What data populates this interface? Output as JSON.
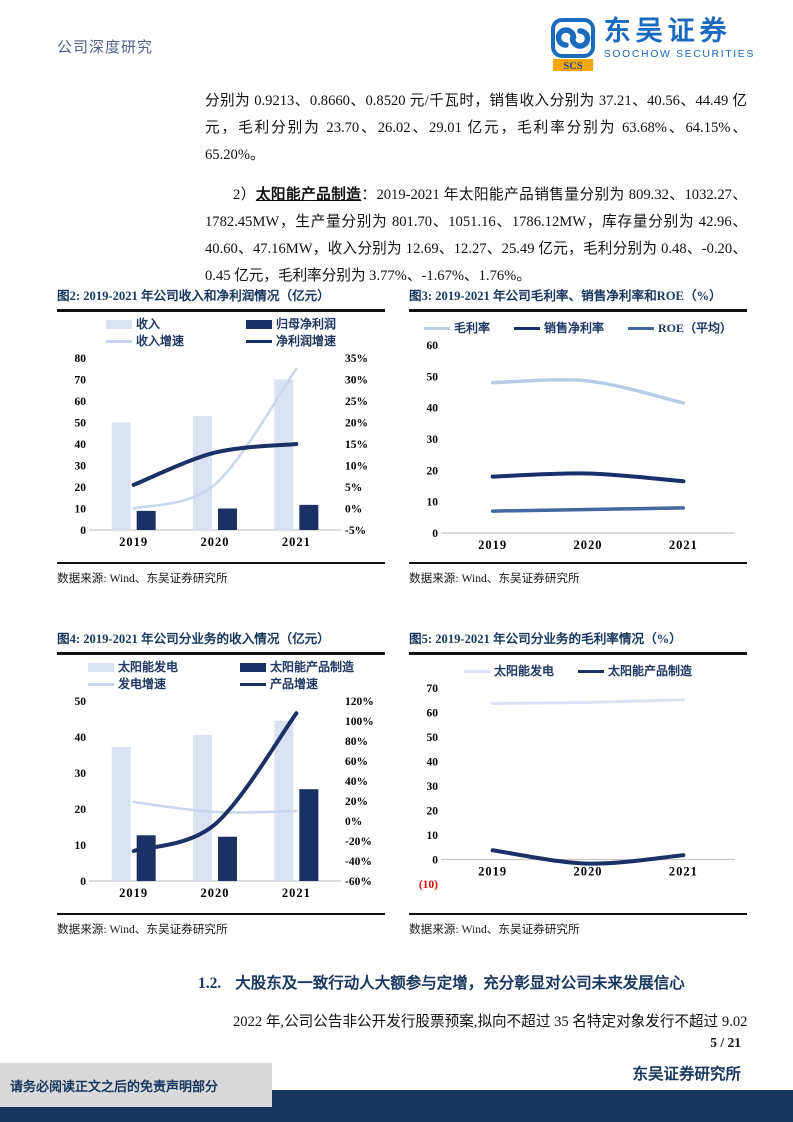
{
  "header": {
    "category": "公司深度研究",
    "logo_abbr": "SCS",
    "logo_cn": "东吴证券",
    "logo_en": "SOOCHOW SECURITIES"
  },
  "paragraphs": {
    "p1": "分别为 0.9213、0.8660、0.8520 元/千瓦时，销售收入分别为 37.21、40.56、44.49 亿元，毛利分别为 23.70、26.02、29.01 亿元，毛利率分别为 63.68%、64.15%、65.20%。",
    "p2_prefix": "2）",
    "p2_bold": "太阳能产品制造",
    "p2_rest": "：2019-2021 年太阳能产品销售量分别为 809.32、1032.27、1782.45MW，生产量分别为 801.70、1051.16、1786.12MW，库存量分别为 42.96、40.60、47.16MW，收入分别为 12.69、12.27、25.49 亿元，毛利分别为 0.48、-0.20、0.45 亿元，毛利率分别为 3.77%、-1.67%、1.76%。",
    "section_number": "1.2.",
    "section_heading": "大股东及一致行动人大额参与定增，充分彰显对公司未来发展信心",
    "p3": "2022 年,公司公告非公开发行股票预案,拟向不超过 35 名特定对象发行不超过 9.02"
  },
  "footer": {
    "page_num": "5 / 21",
    "institute": "东吴证券研究所",
    "disclaimer": "请务必阅读正文之后的免责声明部分"
  },
  "colors": {
    "navy": "#17375E",
    "bar_light": "#D9E2F2",
    "bar_dark": "#1B3064",
    "line_light": "#C7D6EC",
    "line_mid": "#41689F",
    "red": "#E00000",
    "axis_line": "#C6C6C6"
  },
  "chart_data": [
    {
      "id": "fig2",
      "type": "bar",
      "title": "图2: 2019-2021 年公司收入和净利润情况（亿元）",
      "source": "数据来源: Wind、东吴证券研究所",
      "categories": [
        "2019",
        "2020",
        "2021"
      ],
      "left_axis": {
        "min": 0,
        "max": 80,
        "step": 10
      },
      "right_axis": {
        "min": -5,
        "max": 35,
        "step": 5,
        "suffix": "%"
      },
      "legend_layout": "grid",
      "series": [
        {
          "name": "收入",
          "type": "bar",
          "axis": "left",
          "color": "#D9E2F2",
          "values": [
            50,
            53,
            70
          ]
        },
        {
          "name": "归母净利润",
          "type": "bar",
          "axis": "left",
          "color": "#1B3064",
          "values": [
            8.9,
            10,
            11.7
          ]
        },
        {
          "name": "收入增速",
          "type": "line",
          "axis": "right",
          "color": "#C7D6EC",
          "width": 2.5,
          "values": [
            0,
            5.6,
            32.5
          ]
        },
        {
          "name": "净利润增速",
          "type": "line",
          "axis": "right",
          "color": "#1B3064",
          "width": 4,
          "values": [
            5.5,
            13,
            15
          ]
        }
      ]
    },
    {
      "id": "fig3",
      "type": "line",
      "title": "图3: 2019-2021 年公司毛利率、销售净利率和ROE（%）",
      "source": "数据来源: Wind、东吴证券研究所",
      "categories": [
        "2019",
        "2020",
        "2021"
      ],
      "left_axis": {
        "min": 0,
        "max": 60,
        "step": 10
      },
      "legend_layout": "row",
      "series": [
        {
          "name": "毛利率",
          "type": "line",
          "axis": "left",
          "color": "#B9CBE5",
          "width": 3.5,
          "values": [
            48,
            48.5,
            41.5
          ]
        },
        {
          "name": "销售净利率",
          "type": "line",
          "axis": "left",
          "color": "#17306B",
          "width": 4,
          "values": [
            18,
            19,
            16.5
          ]
        },
        {
          "name": "ROE（平均）",
          "type": "line",
          "axis": "left",
          "color": "#41689F",
          "width": 3.5,
          "values": [
            7,
            7.5,
            8
          ]
        }
      ]
    },
    {
      "id": "fig4",
      "type": "bar",
      "title": "图4: 2019-2021 年公司分业务的收入情况（亿元）",
      "source": "数据来源: Wind、东吴证券研究所",
      "categories": [
        "2019",
        "2020",
        "2021"
      ],
      "left_axis": {
        "min": 0,
        "max": 50,
        "step": 10
      },
      "right_axis": {
        "min": -60,
        "max": 120,
        "step": 20,
        "suffix": "%"
      },
      "legend_layout": "grid",
      "series": [
        {
          "name": "太阳能发电",
          "type": "bar",
          "axis": "left",
          "color": "#D9E2F2",
          "values": [
            37.2,
            40.6,
            44.5
          ]
        },
        {
          "name": "太阳能产品制造",
          "type": "bar",
          "axis": "left",
          "color": "#1B3064",
          "values": [
            12.7,
            12.3,
            25.5
          ]
        },
        {
          "name": "发电增速",
          "type": "line",
          "axis": "right",
          "color": "#C7D6EC",
          "width": 2.5,
          "values": [
            19,
            9,
            10
          ]
        },
        {
          "name": "产品增速",
          "type": "line",
          "axis": "right",
          "color": "#1B3064",
          "width": 4,
          "values": [
            -30,
            -3.3,
            107.7
          ]
        }
      ]
    },
    {
      "id": "fig5",
      "type": "line",
      "title": "图5: 2019-2021 年公司分业务的毛利率情况（%）",
      "source": "数据来源: Wind、东吴证券研究所",
      "categories": [
        "2019",
        "2020",
        "2021"
      ],
      "left_axis": {
        "min": -10,
        "max": 70,
        "step": 10,
        "negative_paren_red": true
      },
      "legend_layout": "row",
      "series": [
        {
          "name": "太阳能发电",
          "type": "line",
          "axis": "left",
          "color": "#D9E2F2",
          "width": 3,
          "values": [
            63.68,
            64.15,
            65.2
          ]
        },
        {
          "name": "太阳能产品制造",
          "type": "line",
          "axis": "left",
          "color": "#1B3064",
          "width": 4,
          "values": [
            3.77,
            -1.67,
            1.76
          ]
        }
      ]
    }
  ]
}
